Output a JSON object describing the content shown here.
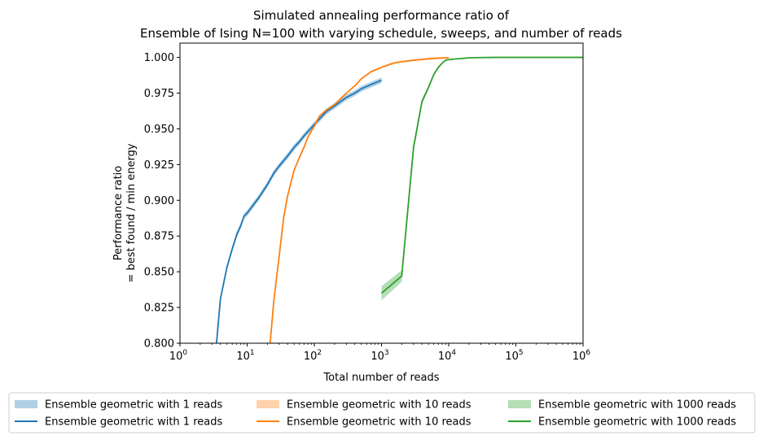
{
  "chart_data": {
    "type": "line",
    "title_lines": [
      "Simulated annealing performance ratio of",
      "Ensemble of Ising N=100 with varying schedule, sweeps, and number of reads"
    ],
    "xlabel": "Total number of reads",
    "ylabel_lines": [
      "Performance ratio",
      "= best found / min energy"
    ],
    "xscale": "log",
    "xlim": [
      1,
      1000000
    ],
    "ylim": [
      0.8,
      1.01
    ],
    "x_ticks": [
      {
        "value": 1,
        "base": "10",
        "exp": "0"
      },
      {
        "value": 10,
        "base": "10",
        "exp": "1"
      },
      {
        "value": 100,
        "base": "10",
        "exp": "2"
      },
      {
        "value": 1000,
        "base": "10",
        "exp": "3"
      },
      {
        "value": 10000,
        "base": "10",
        "exp": "4"
      },
      {
        "value": 100000,
        "base": "10",
        "exp": "5"
      },
      {
        "value": 1000000,
        "base": "10",
        "exp": "6"
      }
    ],
    "y_ticks": [
      "0.800",
      "0.825",
      "0.850",
      "0.875",
      "0.900",
      "0.925",
      "0.950",
      "0.975",
      "1.000"
    ],
    "grid": false,
    "legend_placement": "bottom, below plot, 3 columns",
    "legend": [
      {
        "label": "Ensemble geometric with 1 reads",
        "kind": "band",
        "color": "#1f77b4"
      },
      {
        "label": "Ensemble geometric with 10 reads",
        "kind": "band",
        "color": "#ff7f0e"
      },
      {
        "label": "Ensemble geometric with 1000 reads",
        "kind": "band",
        "color": "#2ca02c"
      },
      {
        "label": "Ensemble geometric with 1 reads",
        "kind": "line",
        "color": "#1f77b4"
      },
      {
        "label": "Ensemble geometric with 10 reads",
        "kind": "line",
        "color": "#ff7f0e"
      },
      {
        "label": "Ensemble geometric with 1000 reads",
        "kind": "line",
        "color": "#2ca02c"
      }
    ],
    "series": [
      {
        "name": "Ensemble geometric with 1 reads",
        "color": "#1f77b4",
        "band_halfwidth": 0.002,
        "x": [
          3.5,
          4,
          5,
          6,
          7,
          8,
          9,
          10,
          12,
          15,
          20,
          25,
          30,
          40,
          50,
          60,
          70,
          80,
          100,
          120,
          150,
          200,
          300,
          400,
          500,
          700,
          1000
        ],
        "y": [
          0.8,
          0.831,
          0.853,
          0.866,
          0.876,
          0.882,
          0.889,
          0.891,
          0.896,
          0.902,
          0.911,
          0.919,
          0.924,
          0.931,
          0.937,
          0.941,
          0.945,
          0.948,
          0.953,
          0.957,
          0.962,
          0.966,
          0.972,
          0.975,
          0.978,
          0.981,
          0.984
        ]
      },
      {
        "name": "Ensemble geometric with 10 reads",
        "color": "#ff7f0e",
        "band_halfwidth": 0.0006,
        "x": [
          22,
          25,
          30,
          35,
          40,
          50,
          60,
          70,
          80,
          100,
          120,
          150,
          200,
          300,
          400,
          500,
          700,
          1000,
          1500,
          2000,
          3000,
          5000,
          7000,
          10000
        ],
        "y": [
          0.8,
          0.83,
          0.861,
          0.888,
          0.903,
          0.921,
          0.93,
          0.937,
          0.944,
          0.952,
          0.959,
          0.963,
          0.967,
          0.975,
          0.98,
          0.985,
          0.99,
          0.993,
          0.996,
          0.997,
          0.998,
          0.999,
          0.9995,
          0.9997
        ]
      },
      {
        "name": "Ensemble geometric with 1000 reads",
        "color": "#2ca02c",
        "band_halfwidth": [
          0.005,
          0.004,
          0.003,
          0.002,
          0.001,
          0.0005,
          0.0003,
          0.0002,
          0.0001,
          0.0001,
          0,
          0,
          0,
          0,
          0,
          0
        ],
        "x": [
          1000,
          2000,
          3000,
          4000,
          5000,
          6000,
          7000,
          8000,
          9000,
          10000,
          20000,
          30000,
          50000,
          100000,
          300000,
          1000000
        ],
        "y": [
          0.835,
          0.847,
          0.937,
          0.969,
          0.979,
          0.988,
          0.993,
          0.996,
          0.998,
          0.9985,
          0.9997,
          0.9999,
          1.0,
          1.0,
          1.0,
          1.0
        ]
      }
    ]
  }
}
